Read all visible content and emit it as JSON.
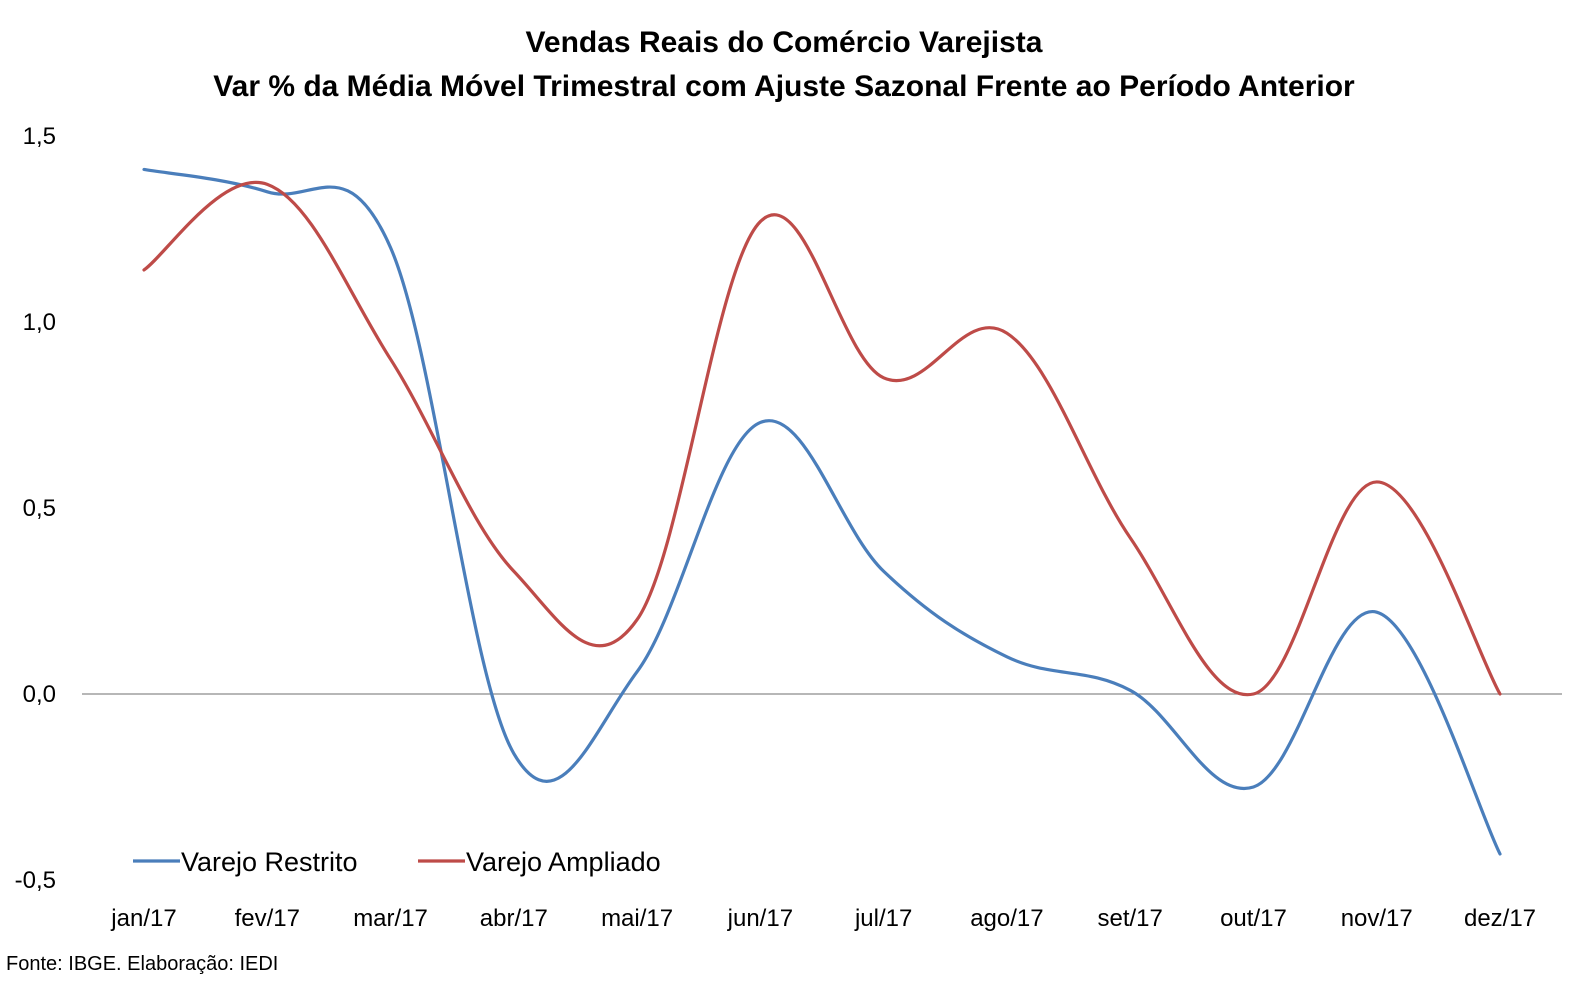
{
  "chart_data": {
    "type": "line",
    "title": "Vendas Reais do Comércio Varejista",
    "subtitle": "Var % da Média Móvel Trimestral com Ajuste Sazonal Frente ao Período Anterior",
    "xlabel": "",
    "ylabel": "",
    "categories": [
      "jan/17",
      "fev/17",
      "mar/17",
      "abr/17",
      "mai/17",
      "jun/17",
      "jul/17",
      "ago/17",
      "set/17",
      "out/17",
      "nov/17",
      "dez/17"
    ],
    "y_ticks": [
      "1,5",
      "1,0",
      "0,5",
      "0,0",
      "-0,5"
    ],
    "y_tick_values": [
      1.5,
      1.0,
      0.5,
      0.0,
      -0.5
    ],
    "ylim": [
      -0.5,
      1.5
    ],
    "grid": false,
    "zero_line": true,
    "legend_position": "bottom-left",
    "series": [
      {
        "name": "Varejo Restrito",
        "color": "#4A7EBB",
        "values": [
          1.41,
          1.35,
          1.2,
          -0.16,
          0.06,
          0.73,
          0.33,
          0.1,
          0.01,
          -0.25,
          0.22,
          -0.43
        ]
      },
      {
        "name": "Varejo Ampliado",
        "color": "#BE4B48",
        "values": [
          1.14,
          1.37,
          0.9,
          0.33,
          0.2,
          1.27,
          0.85,
          0.97,
          0.42,
          0.0,
          0.57,
          0.0
        ]
      }
    ]
  },
  "source_note": "Fonte: IBGE. Elaboração: IEDI"
}
